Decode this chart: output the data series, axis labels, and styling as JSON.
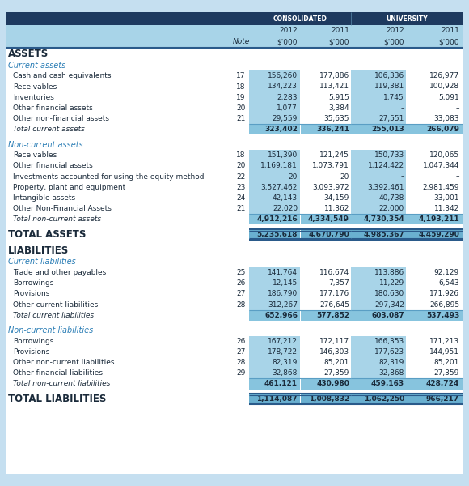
{
  "header_bg": "#1e3a5f",
  "light_blue_bg": "#a8d4e8",
  "white_bg": "#ffffff",
  "outer_bg": "#c5dff0",
  "section_header_color": "#2a7db5",
  "total_row_bg": "#87c4de",
  "grand_total_bg": "#6ab0d0",
  "dark_line": "#2a5a8a",
  "mid_line": "#5a9ec4",
  "rows": [
    {
      "type": "section_title",
      "label": "ASSETS"
    },
    {
      "type": "subsection",
      "label": "Current assets"
    },
    {
      "type": "data",
      "label": "Cash and cash equivalents",
      "note": "17",
      "vals": [
        "156,260",
        "177,886",
        "106,336",
        "126,977"
      ]
    },
    {
      "type": "data",
      "label": "Receivables",
      "note": "18",
      "vals": [
        "134,223",
        "113,421",
        "119,381",
        "100,928"
      ]
    },
    {
      "type": "data",
      "label": "Inventories",
      "note": "19",
      "vals": [
        "2,283",
        "5,915",
        "1,745",
        "5,091"
      ]
    },
    {
      "type": "data",
      "label": "Other financial assets",
      "note": "20",
      "vals": [
        "1,077",
        "3,384",
        "–",
        "–"
      ]
    },
    {
      "type": "data",
      "label": "Other non-financial assets",
      "note": "21",
      "vals": [
        "29,559",
        "35,635",
        "27,551",
        "33,083"
      ]
    },
    {
      "type": "total",
      "label": "Total current assets",
      "vals": [
        "323,402",
        "336,241",
        "255,013",
        "266,079"
      ]
    },
    {
      "type": "spacer"
    },
    {
      "type": "subsection",
      "label": "Non-current assets"
    },
    {
      "type": "data",
      "label": "Receivables",
      "note": "18",
      "vals": [
        "151,390",
        "121,245",
        "150,733",
        "120,065"
      ]
    },
    {
      "type": "data",
      "label": "Other financial assets",
      "note": "20",
      "vals": [
        "1,169,181",
        "1,073,791",
        "1,124,422",
        "1,047,344"
      ]
    },
    {
      "type": "data",
      "label": "Investments accounted for using the equity method",
      "note": "22",
      "vals": [
        "20",
        "20",
        "–",
        "–"
      ]
    },
    {
      "type": "data",
      "label": "Property, plant and equipment",
      "note": "23",
      "vals": [
        "3,527,462",
        "3,093,972",
        "3,392,461",
        "2,981,459"
      ]
    },
    {
      "type": "data",
      "label": "Intangible assets",
      "note": "24",
      "vals": [
        "42,143",
        "34,159",
        "40,738",
        "33,001"
      ]
    },
    {
      "type": "data",
      "label": "Other Non-Financial Assets",
      "note": "21",
      "vals": [
        "22,020",
        "11,362",
        "22,000",
        "11,342"
      ]
    },
    {
      "type": "total",
      "label": "Total non-current assets",
      "vals": [
        "4,912,216",
        "4,334,549",
        "4,730,354",
        "4,193,211"
      ]
    },
    {
      "type": "spacer"
    },
    {
      "type": "grand_total",
      "label": "TOTAL ASSETS",
      "vals": [
        "5,235,618",
        "4,670,790",
        "4,985,367",
        "4,459,290"
      ]
    },
    {
      "type": "spacer"
    },
    {
      "type": "section_title",
      "label": "LIABILITIES"
    },
    {
      "type": "subsection",
      "label": "Current liabilities"
    },
    {
      "type": "data",
      "label": "Trade and other payables",
      "note": "25",
      "vals": [
        "141,764",
        "116,674",
        "113,886",
        "92,129"
      ]
    },
    {
      "type": "data",
      "label": "Borrowings",
      "note": "26",
      "vals": [
        "12,145",
        "7,357",
        "11,229",
        "6,543"
      ]
    },
    {
      "type": "data",
      "label": "Provisions",
      "note": "27",
      "vals": [
        "186,790",
        "177,176",
        "180,630",
        "171,926"
      ]
    },
    {
      "type": "data",
      "label": "Other current liabilities",
      "note": "28",
      "vals": [
        "312,267",
        "276,645",
        "297,342",
        "266,895"
      ]
    },
    {
      "type": "total",
      "label": "Total current liabilities",
      "vals": [
        "652,966",
        "577,852",
        "603,087",
        "537,493"
      ]
    },
    {
      "type": "spacer"
    },
    {
      "type": "subsection",
      "label": "Non-current liabilities"
    },
    {
      "type": "data",
      "label": "Borrowings",
      "note": "26",
      "vals": [
        "167,212",
        "172,117",
        "166,353",
        "171,213"
      ]
    },
    {
      "type": "data",
      "label": "Provisions",
      "note": "27",
      "vals": [
        "178,722",
        "146,303",
        "177,623",
        "144,951"
      ]
    },
    {
      "type": "data",
      "label": "Other non-current liabilities",
      "note": "28",
      "vals": [
        "82,319",
        "85,201",
        "82,319",
        "85,201"
      ]
    },
    {
      "type": "data",
      "label": "Other financial liabilities",
      "note": "29",
      "vals": [
        "32,868",
        "27,359",
        "32,868",
        "27,359"
      ]
    },
    {
      "type": "total",
      "label": "Total non-current liabilities",
      "vals": [
        "461,121",
        "430,980",
        "459,163",
        "428,724"
      ]
    },
    {
      "type": "spacer"
    },
    {
      "type": "grand_total",
      "label": "TOTAL LIABILITIES",
      "vals": [
        "1,114,087",
        "1,008,832",
        "1,062,250",
        "966,217"
      ]
    }
  ]
}
